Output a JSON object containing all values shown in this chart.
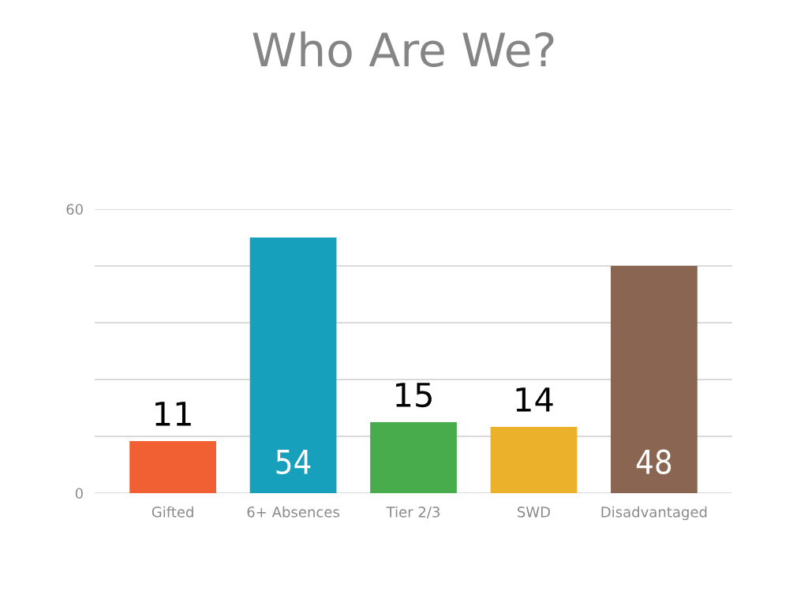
{
  "chart_data": {
    "type": "bar",
    "title": "Who Are We?",
    "categories": [
      "Gifted",
      "6+ Absences",
      "Tier 2/3",
      "SWD",
      "Disadvantaged"
    ],
    "values": [
      11,
      54,
      15,
      14,
      48
    ],
    "colors": [
      "#f06033",
      "#16a0bb",
      "#48ac4c",
      "#ebb12a",
      "#8a6552"
    ],
    "ylim": [
      0,
      60
    ],
    "yticks": [
      0,
      {
        "value": 12,
        "label": null
      },
      {
        "value": 24,
        "label": null
      },
      {
        "value": 36,
        "label": null
      },
      {
        "value": 48,
        "label": null
      },
      60
    ],
    "grid": "y",
    "data_labels": true
  }
}
